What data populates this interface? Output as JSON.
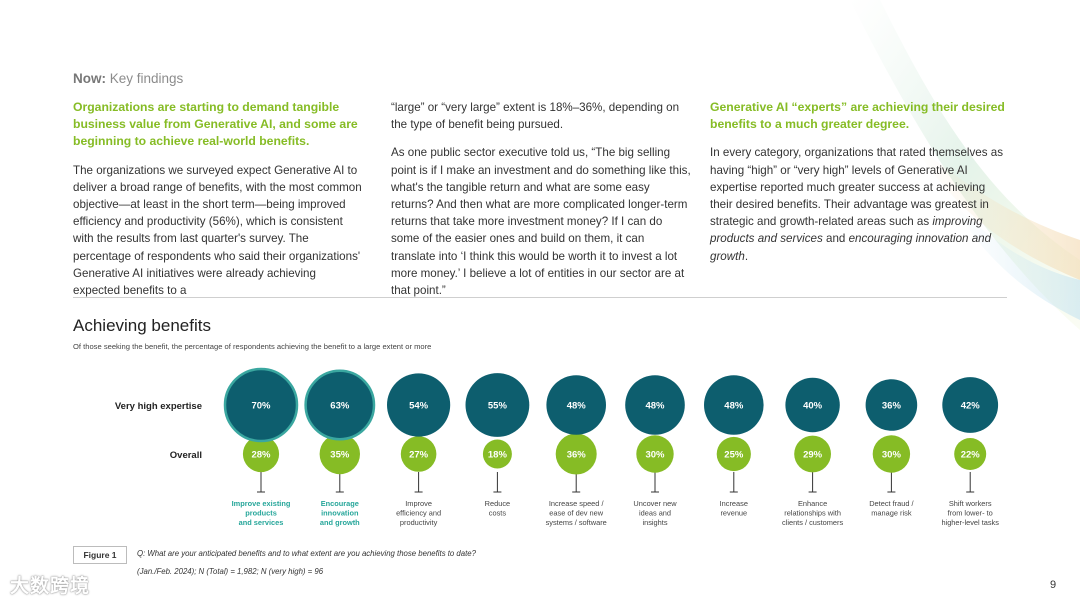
{
  "header": {
    "kicker_bold": "Now:",
    "kicker_rest": " Key findings"
  },
  "columns": {
    "col1": {
      "lead": "Organizations are starting to demand tangible business value from Generative AI, and some are beginning to achieve real-world benefits.",
      "body": "The organizations we surveyed expect Generative AI to deliver a broad range of benefits, with the most common objective—at least in the short term—being improved efficiency and productivity (56%), which is consistent with the results from last quarter's survey. The percentage of respondents who said their organizations' Generative AI initiatives were already achieving expected benefits to a"
    },
    "col2": {
      "body1": "“large” or “very large” extent is 18%–36%, depending on the type of benefit being pursued.",
      "body2": "As one public sector executive told us, “The big selling point is if I make an investment and do something like this, what's the tangible return and what are some easy returns? And then what are more complicated longer-term returns that take more investment money? If I can do some of the easier ones and build on them, it can translate into ‘I think this would be worth it to invest a lot more money.’ I believe a lot of entities in our sector are at that point.”"
    },
    "col3": {
      "lead": "Generative AI “experts” are achieving their desired benefits to a much greater degree.",
      "body_pre": "In every category, organizations that rated themselves as having “high” or “very high” levels of Generative AI expertise reported much greater success at achieving their desired benefits. Their advantage was greatest in strategic and growth-related areas such as ",
      "body_em1": "improving products and services",
      "body_mid": " and ",
      "body_em2": "encouraging innovation and growth",
      "body_end": "."
    }
  },
  "section": {
    "title": "Achieving benefits",
    "subtitle": "Of those seeking the benefit, the percentage of respondents achieving the benefit to a large extent or more"
  },
  "chart_data": {
    "type": "bubble",
    "unit": "%",
    "row_labels": [
      "Very high expertise",
      "Overall"
    ],
    "categories": [
      "Improve existing products and services",
      "Encourage innovation and growth",
      "Improve efficiency and productivity",
      "Reduce costs",
      "Increase speed / ease of dev new systems / software",
      "Uncover new ideas and insights",
      "Increase revenue",
      "Enhance relationships with clients / customers",
      "Detect fraud / manage risk",
      "Shift workers from lower- to higher-level tasks"
    ],
    "category_lines": [
      [
        "Improve existing",
        "products",
        "and services"
      ],
      [
        "Encourage",
        "innovation",
        "and growth"
      ],
      [
        "Improve",
        "efficiency and",
        "productivity"
      ],
      [
        "Reduce",
        "costs"
      ],
      [
        "Increase speed /",
        "ease of dev new",
        "systems / software"
      ],
      [
        "Uncover new",
        "ideas and",
        "insights"
      ],
      [
        "Increase",
        "revenue"
      ],
      [
        "Enhance",
        "relationships with",
        "clients / customers"
      ],
      [
        "Detect fraud /",
        "manage risk"
      ],
      [
        "Shift workers",
        "from lower- to",
        "higher-level tasks"
      ]
    ],
    "highlighted": [
      true,
      true,
      false,
      false,
      false,
      false,
      false,
      false,
      false,
      false
    ],
    "series": [
      {
        "name": "Very high expertise",
        "values": [
          70,
          63,
          54,
          55,
          48,
          48,
          48,
          40,
          36,
          42
        ]
      },
      {
        "name": "Overall",
        "values": [
          28,
          35,
          27,
          18,
          36,
          30,
          25,
          29,
          30,
          22
        ]
      }
    ],
    "colors": {
      "very_high": "#0d5e6e",
      "very_high_ring": "#3aa7a0",
      "overall": "#86bc25",
      "highlight_text": "#26a69a",
      "label_text": "#444444",
      "value_text": "#ffffff"
    }
  },
  "figure": {
    "label": "Figure 1",
    "question": "Q: What are your anticipated benefits and to what extent are you achieving those benefits to date?",
    "note": "(Jan./Feb. 2024); N (Total) = 1,982; N (very high) = 96"
  },
  "page_number": "9",
  "watermark": "大数跨境"
}
